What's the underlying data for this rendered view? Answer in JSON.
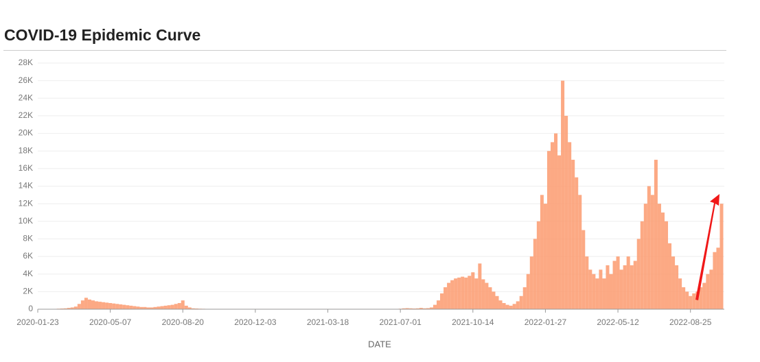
{
  "chart_data": {
    "type": "bar",
    "title": "COVID-19 Epidemic Curve",
    "x_label": "DATE",
    "color": "#fb9a6e",
    "grid": true,
    "xlim": [
      0,
      994
    ],
    "xticks": [
      {
        "value": 0,
        "label": "2020-01-23"
      },
      {
        "value": 105,
        "label": "2020-05-07"
      },
      {
        "value": 210,
        "label": "2020-08-20"
      },
      {
        "value": 315,
        "label": "2020-12-03"
      },
      {
        "value": 420,
        "label": "2021-03-18"
      },
      {
        "value": 525,
        "label": "2021-07-01"
      },
      {
        "value": 630,
        "label": "2021-10-14"
      },
      {
        "value": 735,
        "label": "2022-01-27"
      },
      {
        "value": 840,
        "label": "2022-05-12"
      },
      {
        "value": 945,
        "label": "2022-08-25"
      }
    ],
    "ylim": [
      0,
      28000
    ],
    "yticks": [
      0,
      {
        "value": 2000,
        "label": "2K"
      },
      {
        "value": 4000,
        "label": "4K"
      },
      {
        "value": 6000,
        "label": "6K"
      },
      {
        "value": 8000,
        "label": "8K"
      },
      {
        "value": 10000,
        "label": "10K"
      },
      {
        "value": 12000,
        "label": "12K"
      },
      {
        "value": 14000,
        "label": "14K"
      },
      {
        "value": 16000,
        "label": "16K"
      },
      {
        "value": 18000,
        "label": "18K"
      },
      {
        "value": 20000,
        "label": "20K"
      },
      {
        "value": 22000,
        "label": "22K"
      },
      {
        "value": 24000,
        "label": "24K"
      },
      {
        "value": 26000,
        "label": "26K"
      },
      {
        "value": 28000,
        "label": "28K"
      }
    ],
    "x": [
      0,
      5,
      10,
      15,
      20,
      25,
      30,
      35,
      40,
      45,
      50,
      55,
      60,
      65,
      70,
      75,
      80,
      85,
      90,
      95,
      100,
      105,
      110,
      115,
      120,
      125,
      130,
      135,
      140,
      145,
      150,
      155,
      160,
      165,
      170,
      175,
      180,
      185,
      190,
      195,
      200,
      205,
      210,
      215,
      220,
      225,
      230,
      235,
      240,
      245,
      250,
      255,
      260,
      265,
      270,
      275,
      280,
      285,
      290,
      295,
      300,
      305,
      310,
      315,
      320,
      325,
      330,
      335,
      340,
      345,
      350,
      355,
      360,
      365,
      370,
      375,
      380,
      385,
      390,
      395,
      400,
      405,
      410,
      415,
      420,
      425,
      430,
      435,
      440,
      445,
      450,
      455,
      460,
      465,
      470,
      475,
      480,
      485,
      490,
      495,
      500,
      505,
      510,
      515,
      520,
      525,
      530,
      535,
      540,
      545,
      550,
      555,
      560,
      565,
      570,
      575,
      580,
      585,
      590,
      595,
      600,
      605,
      610,
      615,
      620,
      625,
      630,
      635,
      640,
      645,
      650,
      655,
      660,
      665,
      670,
      675,
      680,
      685,
      690,
      695,
      700,
      705,
      710,
      715,
      720,
      725,
      730,
      735,
      740,
      745,
      750,
      755,
      760,
      765,
      770,
      775,
      780,
      785,
      790,
      795,
      800,
      805,
      810,
      815,
      820,
      825,
      830,
      835,
      840,
      845,
      850,
      855,
      860,
      865,
      870,
      875,
      880,
      885,
      890,
      895,
      900,
      905,
      910,
      915,
      920,
      925,
      930,
      935,
      940,
      945,
      950,
      955,
      960,
      965,
      970,
      975,
      980,
      985,
      990
    ],
    "values": [
      0,
      0,
      10,
      20,
      30,
      40,
      60,
      80,
      100,
      150,
      200,
      300,
      600,
      1000,
      1300,
      1100,
      1000,
      900,
      850,
      800,
      750,
      700,
      650,
      600,
      550,
      500,
      450,
      400,
      350,
      300,
      250,
      250,
      200,
      200,
      250,
      300,
      350,
      400,
      450,
      500,
      600,
      700,
      1000,
      400,
      200,
      100,
      80,
      60,
      50,
      40,
      40,
      40,
      40,
      40,
      40,
      40,
      40,
      40,
      40,
      40,
      40,
      40,
      40,
      40,
      40,
      40,
      40,
      40,
      40,
      40,
      40,
      40,
      40,
      40,
      40,
      40,
      40,
      40,
      40,
      40,
      40,
      40,
      40,
      40,
      40,
      40,
      40,
      40,
      40,
      40,
      40,
      40,
      40,
      40,
      40,
      40,
      40,
      40,
      40,
      40,
      40,
      40,
      40,
      40,
      40,
      60,
      100,
      120,
      100,
      80,
      100,
      150,
      100,
      120,
      200,
      500,
      1000,
      1800,
      2500,
      3000,
      3300,
      3500,
      3600,
      3700,
      3600,
      3800,
      4200,
      3500,
      5200,
      3400,
      3000,
      2500,
      2000,
      1500,
      1000,
      700,
      500,
      400,
      600,
      900,
      1500,
      2500,
      4000,
      6000,
      8000,
      10000,
      13000,
      12000,
      18000,
      19000,
      20000,
      17500,
      26000,
      22000,
      19000,
      17000,
      15000,
      13000,
      9000,
      6000,
      4500,
      4000,
      3500,
      4500,
      3500,
      5000,
      4000,
      5500,
      6000,
      4500,
      5000,
      6000,
      5000,
      5500,
      8000,
      10000,
      12000,
      14000,
      13000,
      17000,
      12000,
      11000,
      10000,
      7500,
      6000,
      5000,
      3500,
      2500,
      2000,
      1500,
      1800,
      2000,
      2500,
      3000,
      4000,
      4500,
      6500,
      7000,
      12000
    ]
  }
}
